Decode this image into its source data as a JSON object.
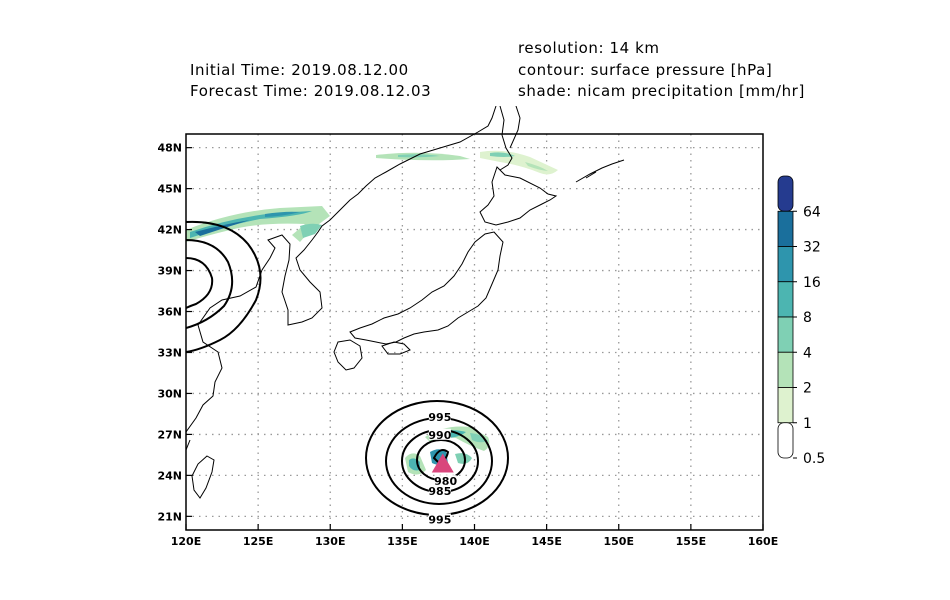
{
  "header": {
    "initial_time": "Initial Time: 2019.08.12.00",
    "forecast_time": "Forecast Time: 2019.08.12.03",
    "resolution": "resolution: 14 km",
    "contour": "contour: surface pressure [hPa]",
    "shade": "shade: nicam precipitation [mm/hr]"
  },
  "map": {
    "lon_range": [
      120,
      160
    ],
    "lat_range": [
      20,
      50
    ],
    "lon_ticks": [
      "120E",
      "125E",
      "130E",
      "135E",
      "140E",
      "145E",
      "150E",
      "155E",
      "160E"
    ],
    "lat_ticks": [
      "21N",
      "24N",
      "27N",
      "30N",
      "33N",
      "36N",
      "39N",
      "42N",
      "45N",
      "48N"
    ],
    "grid": true,
    "contour_labels": [
      {
        "text": "995",
        "lon": 137.6,
        "lat": 28.2
      },
      {
        "text": "990",
        "lon": 137.6,
        "lat": 26.9
      },
      {
        "text": "980",
        "lon": 138.0,
        "lat": 23.5
      },
      {
        "text": "985",
        "lon": 137.6,
        "lat": 22.8
      },
      {
        "text": "995",
        "lon": 137.6,
        "lat": 20.7
      }
    ],
    "typhoon_center": {
      "lon": 137.8,
      "lat": 24.8,
      "color": "#d9467c"
    }
  },
  "colorbar": {
    "labels": [
      "64",
      "32",
      "16",
      "8",
      "4",
      "2",
      "1",
      "0.5"
    ],
    "colors": [
      "#253b8f",
      "#1a6f9c",
      "#2e95ad",
      "#4cb5b1",
      "#7fd0b4",
      "#b4e3b8",
      "#def2cf",
      "#ffffff"
    ]
  }
}
